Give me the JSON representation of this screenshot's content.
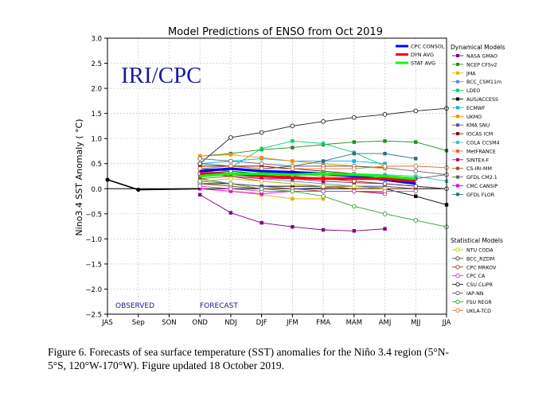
{
  "chart_data": {
    "type": "line",
    "title": "Model Predictions of ENSO from Oct 2019",
    "watermark": "IRI/CPC",
    "ylabel": "Nino3.4 SST Anomaly ( °C)",
    "xlabel": "",
    "categories": [
      "JAS",
      "Sep",
      "SON",
      "OND",
      "NDJ",
      "DJF",
      "JFM",
      "FMA",
      "MAM",
      "AMJ",
      "MJJ",
      "JJA"
    ],
    "ylim": [
      -2.5,
      3.0
    ],
    "yticks": [
      "3.0",
      "2.5",
      "2.0",
      "1.5",
      "1.0",
      "0.5",
      "0.0",
      "−0.5",
      "−1.0",
      "−1.5",
      "−2.0",
      "−2.5"
    ],
    "ytick_values": [
      3.0,
      2.5,
      2.0,
      1.5,
      1.0,
      0.5,
      0.0,
      -0.5,
      -1.0,
      -1.5,
      -2.0,
      -2.5
    ],
    "grid": true,
    "observed_label": "OBSERVED",
    "forecast_label": "FORECAST",
    "observed": [
      0.18,
      -0.02
    ],
    "averages": [
      {
        "name": "CPC CONSOL",
        "color": "#0000ff",
        "values": [
          0.35,
          0.4,
          0.35,
          0.33,
          0.3,
          0.25,
          0.18,
          0.1
        ]
      },
      {
        "name": "DYN AVG",
        "color": "#ff0000",
        "values": [
          0.3,
          0.3,
          0.25,
          0.22,
          0.2,
          0.2,
          0.2,
          0.15
        ]
      },
      {
        "name": "STAT AVG",
        "color": "#00ff00",
        "values": [
          0.25,
          0.3,
          0.3,
          0.28,
          0.3,
          0.28,
          0.25,
          0.2
        ]
      }
    ],
    "dynamical_title": "Dynamical Models",
    "dynamical": [
      {
        "name": "NASA GMAO",
        "color": "#800080",
        "values": [
          -0.12,
          -0.48,
          -0.68,
          -0.76,
          -0.82,
          -0.84,
          -0.8
        ]
      },
      {
        "name": "NCEP CFSv2",
        "color": "#228b22",
        "values": [
          0.65,
          0.7,
          0.78,
          0.82,
          0.88,
          0.93,
          0.95,
          0.93,
          0.76
        ]
      },
      {
        "name": "JMA",
        "color": "#e8b000",
        "values": [
          0.0,
          -0.05,
          -0.12,
          -0.2,
          -0.2
        ]
      },
      {
        "name": "BCC_CSM11m",
        "color": "#4a90e2",
        "values": [
          0.25,
          0.3,
          0.2,
          0.15,
          0.1,
          0.05,
          0.02
        ]
      },
      {
        "name": "LDEO",
        "color": "#00d070",
        "values": [
          0.3,
          0.42,
          0.8,
          0.95,
          0.9,
          0.72,
          0.45
        ]
      },
      {
        "name": "AUS/ACCESS",
        "color": "#000000",
        "values": [
          0.1,
          0.1,
          0.05,
          0.05,
          0.05,
          0.05,
          0.0,
          -0.15,
          -0.32
        ]
      },
      {
        "name": "ECMWF",
        "color": "#00b0e0",
        "values": [
          0.5,
          0.55,
          0.6,
          0.55,
          0.55,
          0.55,
          0.5
        ]
      },
      {
        "name": "UKMO",
        "color": "#ff8c00",
        "values": [
          0.65,
          0.68,
          0.62,
          0.55,
          0.5,
          0.45,
          0.4
        ]
      },
      {
        "name": "KMA SNU",
        "color": "#6050a0",
        "values": [
          0.2,
          0.1,
          0.05,
          0.0,
          0.02,
          0.05,
          0.05,
          0.0
        ]
      },
      {
        "name": "IOCAS ICM",
        "color": "#8b0000",
        "values": [
          0.45,
          0.45,
          0.45,
          0.4,
          0.35,
          0.3,
          0.25
        ]
      },
      {
        "name": "COLA CCSM4",
        "color": "#40c0c0",
        "values": [
          0.4,
          0.4,
          0.35,
          0.3,
          0.32,
          0.3,
          0.28,
          0.25,
          0.15
        ]
      },
      {
        "name": "MetFRANCE",
        "color": "#ff6040",
        "values": [
          0.35,
          0.3,
          0.3,
          0.3,
          0.25,
          0.25,
          0.2
        ]
      },
      {
        "name": "SINTEX-F",
        "color": "#c00060",
        "values": [
          0.3,
          0.25,
          0.2,
          0.2,
          0.15,
          0.12,
          0.1,
          0.05,
          0.0
        ]
      },
      {
        "name": "CS-IRI-MM",
        "color": "#a05020",
        "values": [
          0.2,
          0.25,
          0.15,
          0.1,
          0.05,
          0.0,
          0.0,
          0.0
        ]
      },
      {
        "name": "GFDL CM2.1",
        "color": "#606060",
        "values": [
          0.4,
          0.35,
          0.3,
          0.35,
          0.3,
          0.25,
          0.25,
          0.2,
          0.28
        ]
      },
      {
        "name": "CMC CANSIP",
        "color": "#e000e0",
        "values": [
          0.0,
          -0.05,
          -0.1,
          -0.05,
          -0.05,
          -0.05,
          -0.08
        ]
      },
      {
        "name": "GFDL FLOR",
        "color": "#2e6e80",
        "values": [
          0.5,
          0.45,
          0.4,
          0.45,
          0.55,
          0.7,
          0.7,
          0.6
        ]
      }
    ],
    "statistical_title": "Statistical Models",
    "statistical": [
      {
        "name": "NTU CODA",
        "color": "#c8c800",
        "values": [
          0.15,
          0.2,
          0.15,
          0.1,
          0.05,
          0.05,
          0.0
        ]
      },
      {
        "name": "BCC_RZDM",
        "color": "#404040",
        "values": [
          0.3,
          0.35,
          0.3,
          0.25,
          0.2,
          0.15,
          0.1,
          0.05,
          0.0
        ]
      },
      {
        "name": "CPC MRKOV",
        "color": "#8b4513",
        "values": [
          0.1,
          0.05,
          0.0,
          0.0,
          -0.05,
          -0.05,
          -0.1
        ]
      },
      {
        "name": "CPC CA",
        "color": "#c040c0",
        "values": [
          0.05,
          0.0,
          -0.05,
          -0.05,
          -0.05,
          -0.05,
          -0.05,
          -0.05
        ]
      },
      {
        "name": "CSU CLIPR",
        "color": "#202020",
        "values": [
          0.5,
          1.02,
          1.12,
          1.25,
          1.34,
          1.42,
          1.48,
          1.55,
          1.6
        ]
      },
      {
        "name": "IAP-NN",
        "color": "#606060",
        "values": [
          0.6,
          0.55,
          0.5,
          0.45,
          0.45,
          0.45,
          0.42,
          0.35,
          0.28
        ]
      },
      {
        "name": "FSU REGR",
        "color": "#30a030",
        "values": [
          0.15,
          0.1,
          0.0,
          -0.05,
          -0.15,
          -0.35,
          -0.5,
          -0.63,
          -0.76
        ]
      },
      {
        "name": "UKLA-TCD",
        "color": "#e07030",
        "values": [
          0.4,
          0.45,
          0.4,
          0.4,
          0.4,
          0.4,
          0.45,
          0.45,
          0.42
        ]
      }
    ]
  },
  "caption": {
    "line1": "Figure 6. Forecasts of sea surface temperature (SST) anomalies for the Niño 3.4 region (5°N-",
    "line2": "5°S, 120°W-170°W). Figure updated 18 October 2019."
  }
}
